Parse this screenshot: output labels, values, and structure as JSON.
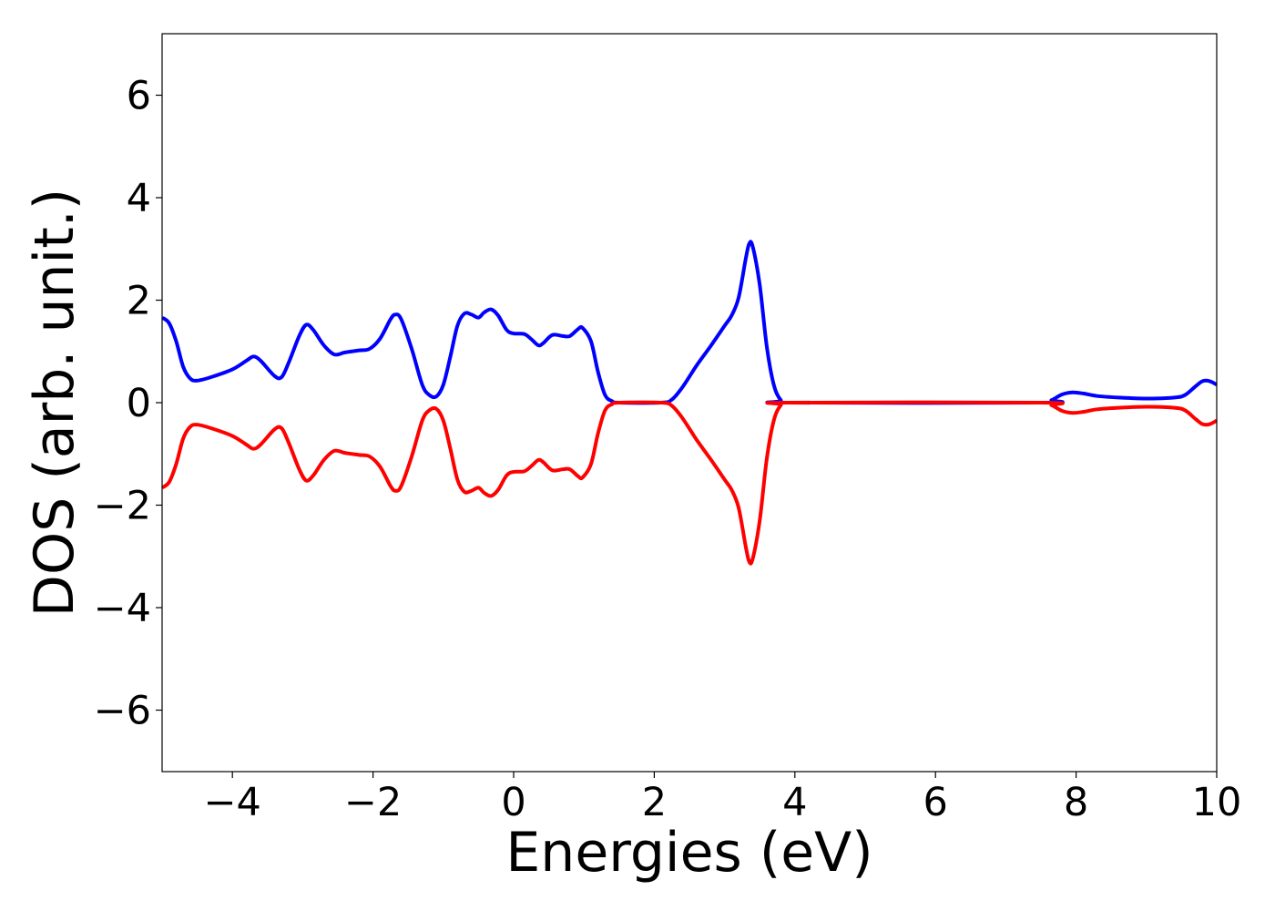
{
  "chart_data": {
    "type": "line",
    "title": "",
    "xlabel": "Energies (eV)",
    "ylabel": "DOS (arb. unit.)",
    "xlim": [
      -5,
      10
    ],
    "ylim": [
      -7.2,
      7.2
    ],
    "grid": false,
    "x_ticks": [
      -4,
      -2,
      0,
      2,
      4,
      6,
      8,
      10
    ],
    "y_ticks": [
      -6,
      -4,
      -2,
      0,
      2,
      4,
      6
    ],
    "series": [
      {
        "color": "#0000ff",
        "points": [
          [
            -5.0,
            1.66
          ],
          [
            -4.9,
            1.55
          ],
          [
            -4.8,
            1.2
          ],
          [
            -4.7,
            0.7
          ],
          [
            -4.6,
            0.47
          ],
          [
            -4.5,
            0.43
          ],
          [
            -4.3,
            0.5
          ],
          [
            -4.0,
            0.65
          ],
          [
            -3.8,
            0.82
          ],
          [
            -3.7,
            0.9
          ],
          [
            -3.6,
            0.82
          ],
          [
            -3.4,
            0.52
          ],
          [
            -3.3,
            0.5
          ],
          [
            -3.2,
            0.78
          ],
          [
            -3.05,
            1.3
          ],
          [
            -2.95,
            1.52
          ],
          [
            -2.85,
            1.42
          ],
          [
            -2.7,
            1.12
          ],
          [
            -2.55,
            0.94
          ],
          [
            -2.4,
            0.98
          ],
          [
            -2.2,
            1.02
          ],
          [
            -2.05,
            1.05
          ],
          [
            -1.9,
            1.25
          ],
          [
            -1.75,
            1.63
          ],
          [
            -1.68,
            1.72
          ],
          [
            -1.6,
            1.63
          ],
          [
            -1.45,
            1.05
          ],
          [
            -1.3,
            0.35
          ],
          [
            -1.2,
            0.15
          ],
          [
            -1.1,
            0.12
          ],
          [
            -1.0,
            0.35
          ],
          [
            -0.9,
            0.9
          ],
          [
            -0.8,
            1.5
          ],
          [
            -0.7,
            1.74
          ],
          [
            -0.6,
            1.72
          ],
          [
            -0.5,
            1.66
          ],
          [
            -0.42,
            1.76
          ],
          [
            -0.32,
            1.82
          ],
          [
            -0.22,
            1.7
          ],
          [
            -0.1,
            1.42
          ],
          [
            0.0,
            1.35
          ],
          [
            0.15,
            1.34
          ],
          [
            0.25,
            1.24
          ],
          [
            0.35,
            1.12
          ],
          [
            0.42,
            1.16
          ],
          [
            0.55,
            1.32
          ],
          [
            0.7,
            1.3
          ],
          [
            0.8,
            1.3
          ],
          [
            0.92,
            1.44
          ],
          [
            0.98,
            1.46
          ],
          [
            1.1,
            1.2
          ],
          [
            1.2,
            0.6
          ],
          [
            1.3,
            0.15
          ],
          [
            1.4,
            0.03
          ],
          [
            1.5,
            0.0
          ],
          [
            2.1,
            0.0
          ],
          [
            2.25,
            0.06
          ],
          [
            2.4,
            0.3
          ],
          [
            2.6,
            0.72
          ],
          [
            2.8,
            1.1
          ],
          [
            3.0,
            1.5
          ],
          [
            3.1,
            1.7
          ],
          [
            3.2,
            2.05
          ],
          [
            3.3,
            2.8
          ],
          [
            3.35,
            3.1
          ],
          [
            3.4,
            3.05
          ],
          [
            3.5,
            2.3
          ],
          [
            3.6,
            1.1
          ],
          [
            3.7,
            0.35
          ],
          [
            3.8,
            0.05
          ],
          [
            3.9,
            0.0
          ],
          [
            7.5,
            0.0
          ],
          [
            7.65,
            0.05
          ],
          [
            7.8,
            0.16
          ],
          [
            7.95,
            0.2
          ],
          [
            8.1,
            0.18
          ],
          [
            8.3,
            0.13
          ],
          [
            8.6,
            0.1
          ],
          [
            9.0,
            0.08
          ],
          [
            9.4,
            0.1
          ],
          [
            9.55,
            0.15
          ],
          [
            9.7,
            0.32
          ],
          [
            9.8,
            0.42
          ],
          [
            9.9,
            0.42
          ],
          [
            10.0,
            0.35
          ]
        ]
      },
      {
        "color": "#ff0000",
        "points": [
          [
            -5.0,
            -1.66
          ],
          [
            -4.9,
            -1.55
          ],
          [
            -4.8,
            -1.2
          ],
          [
            -4.7,
            -0.7
          ],
          [
            -4.6,
            -0.47
          ],
          [
            -4.5,
            -0.43
          ],
          [
            -4.3,
            -0.5
          ],
          [
            -4.0,
            -0.65
          ],
          [
            -3.8,
            -0.82
          ],
          [
            -3.7,
            -0.9
          ],
          [
            -3.6,
            -0.82
          ],
          [
            -3.4,
            -0.52
          ],
          [
            -3.3,
            -0.5
          ],
          [
            -3.2,
            -0.78
          ],
          [
            -3.05,
            -1.3
          ],
          [
            -2.95,
            -1.52
          ],
          [
            -2.85,
            -1.42
          ],
          [
            -2.7,
            -1.12
          ],
          [
            -2.55,
            -0.94
          ],
          [
            -2.4,
            -0.98
          ],
          [
            -2.2,
            -1.02
          ],
          [
            -2.05,
            -1.05
          ],
          [
            -1.9,
            -1.25
          ],
          [
            -1.75,
            -1.63
          ],
          [
            -1.68,
            -1.72
          ],
          [
            -1.6,
            -1.63
          ],
          [
            -1.45,
            -1.05
          ],
          [
            -1.3,
            -0.35
          ],
          [
            -1.2,
            -0.15
          ],
          [
            -1.1,
            -0.12
          ],
          [
            -1.0,
            -0.35
          ],
          [
            -0.9,
            -0.9
          ],
          [
            -0.8,
            -1.5
          ],
          [
            -0.7,
            -1.74
          ],
          [
            -0.6,
            -1.72
          ],
          [
            -0.5,
            -1.66
          ],
          [
            -0.42,
            -1.76
          ],
          [
            -0.32,
            -1.82
          ],
          [
            -0.22,
            -1.7
          ],
          [
            -0.1,
            -1.42
          ],
          [
            0.0,
            -1.35
          ],
          [
            0.15,
            -1.34
          ],
          [
            0.25,
            -1.24
          ],
          [
            0.35,
            -1.12
          ],
          [
            0.42,
            -1.16
          ],
          [
            0.55,
            -1.32
          ],
          [
            0.7,
            -1.3
          ],
          [
            0.8,
            -1.3
          ],
          [
            0.92,
            -1.44
          ],
          [
            0.98,
            -1.46
          ],
          [
            1.1,
            -1.2
          ],
          [
            1.2,
            -0.6
          ],
          [
            1.3,
            -0.15
          ],
          [
            1.4,
            -0.03
          ],
          [
            1.5,
            0.0
          ],
          [
            2.1,
            0.0
          ],
          [
            2.25,
            -0.06
          ],
          [
            2.4,
            -0.3
          ],
          [
            2.6,
            -0.72
          ],
          [
            2.8,
            -1.1
          ],
          [
            3.0,
            -1.5
          ],
          [
            3.1,
            -1.7
          ],
          [
            3.2,
            -2.05
          ],
          [
            3.3,
            -2.8
          ],
          [
            3.35,
            -3.1
          ],
          [
            3.4,
            -3.05
          ],
          [
            3.5,
            -2.3
          ],
          [
            3.6,
            -1.1
          ],
          [
            3.7,
            -0.35
          ],
          [
            3.8,
            -0.05
          ],
          [
            3.9,
            0.0
          ],
          [
            7.5,
            0.0
          ],
          [
            7.65,
            -0.05
          ],
          [
            7.8,
            -0.16
          ],
          [
            7.95,
            -0.2
          ],
          [
            8.1,
            -0.18
          ],
          [
            8.3,
            -0.13
          ],
          [
            8.6,
            -0.1
          ],
          [
            9.0,
            -0.08
          ],
          [
            9.4,
            -0.1
          ],
          [
            9.55,
            -0.15
          ],
          [
            9.7,
            -0.32
          ],
          [
            9.8,
            -0.42
          ],
          [
            9.9,
            -0.42
          ],
          [
            10.0,
            -0.35
          ]
        ]
      }
    ]
  }
}
